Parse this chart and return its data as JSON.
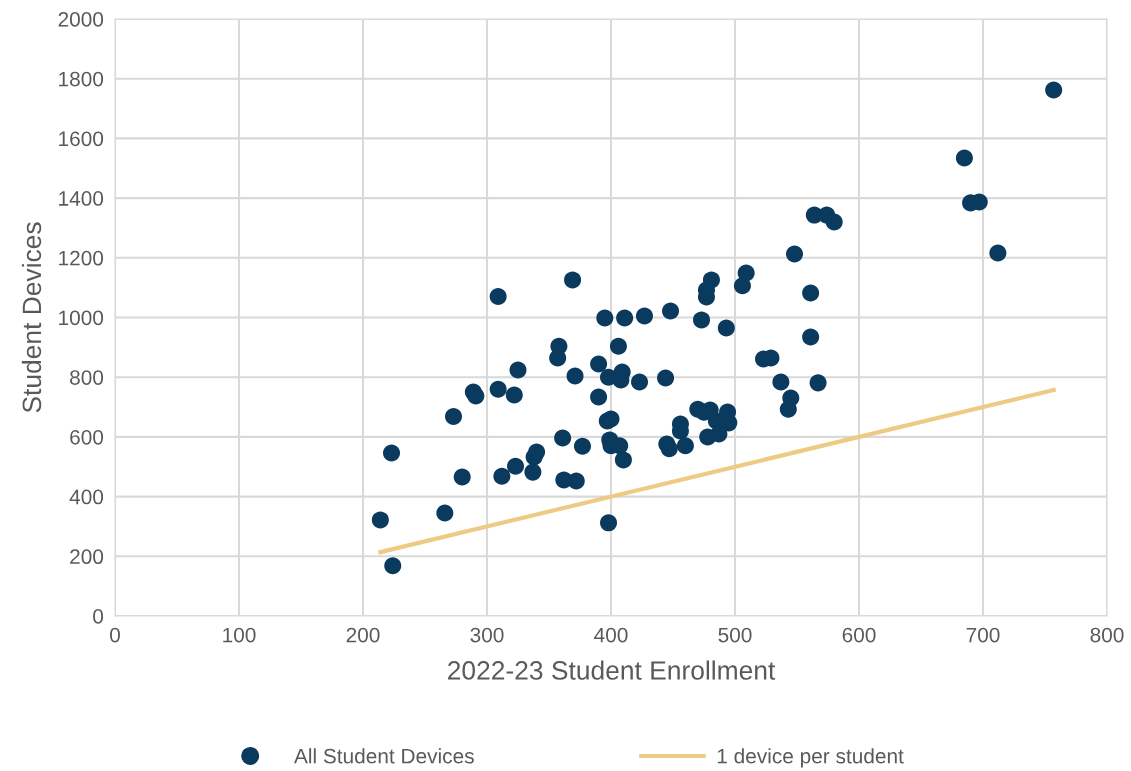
{
  "chart_data": {
    "type": "scatter",
    "xlabel": "2022-23 Student Enrollment",
    "ylabel": "Student Devices",
    "xlim": [
      0,
      800
    ],
    "xticks": [
      0,
      100,
      200,
      300,
      400,
      500,
      600,
      700,
      800
    ],
    "ylim": [
      0,
      2000
    ],
    "yticks": [
      0,
      200,
      400,
      600,
      800,
      1000,
      1200,
      1400,
      1600,
      1800,
      2000
    ],
    "grid": true,
    "legend": "bottom",
    "series": [
      {
        "name": "All Student Devices",
        "marker": "circle",
        "color": "#0b3a5f",
        "x": [
          214,
          223,
          224,
          266,
          273,
          280,
          289,
          291,
          309,
          309,
          312,
          322,
          323,
          325,
          337,
          338,
          340,
          357,
          358,
          361,
          362,
          369,
          371,
          372,
          377,
          390,
          390,
          395,
          397,
          400,
          399,
          400,
          398,
          406,
          409,
          398,
          408,
          407,
          410,
          411,
          423,
          427,
          444,
          445,
          447,
          448,
          456,
          456,
          460,
          470,
          473,
          475,
          477,
          477,
          478,
          480,
          481,
          485,
          487,
          493,
          494,
          495,
          506,
          509,
          523,
          529,
          537,
          543,
          545,
          548,
          561,
          561,
          564,
          567,
          574,
          580,
          685,
          690,
          697,
          712,
          757
        ],
        "values": [
          322,
          546,
          168,
          345,
          668,
          466,
          750,
          737,
          1070,
          760,
          468,
          740,
          502,
          824,
          482,
          533,
          549,
          864,
          904,
          596,
          456,
          1126,
          804,
          452,
          569,
          844,
          734,
          998,
          653,
          660,
          590,
          570,
          312,
          904,
          817,
          800,
          791,
          570,
          523,
          998,
          784,
          1005,
          797,
          576,
          560,
          1022,
          643,
          620,
          570,
          693,
          992,
          683,
          1092,
          1069,
          600,
          690,
          1126,
          653,
          610,
          965,
          683,
          647,
          1106,
          1149,
          861,
          864,
          784,
          693,
          730,
          1213,
          1082,
          935,
          1343,
          781,
          1343,
          1320,
          1534,
          1384,
          1387,
          1216,
          1762
        ]
      },
      {
        "name": "1 device per student",
        "type": "line",
        "marker": "none",
        "line_style": "solid",
        "color": "#eecb84",
        "x": [
          214,
          757
        ],
        "values": [
          214,
          757
        ]
      }
    ]
  }
}
